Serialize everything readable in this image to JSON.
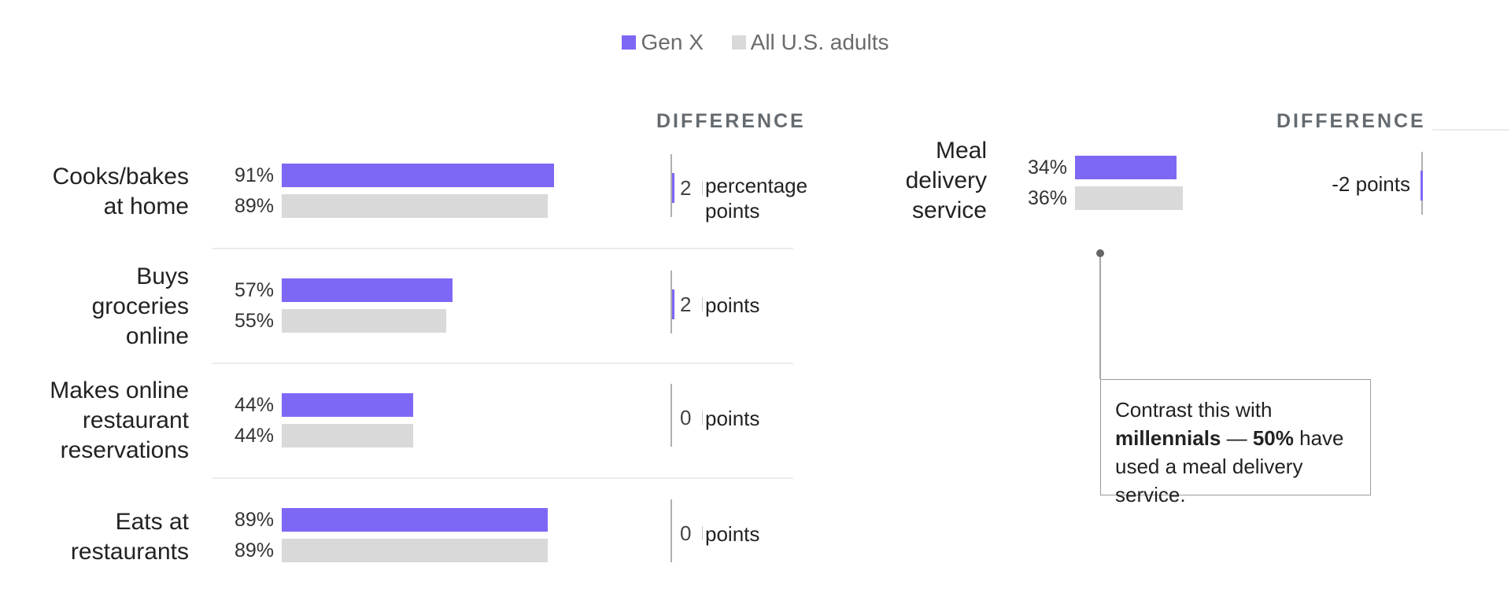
{
  "legend": [
    {
      "label": "Gen X",
      "color": "#7d68f5"
    },
    {
      "label": "All U.S. adults",
      "color": "#d9d9d9"
    }
  ],
  "diff_header": "DIFFERENCE",
  "chart_data": {
    "type": "bar",
    "orientation": "horizontal",
    "categories": [
      "Cooks/bakes at home",
      "Buys groceries online",
      "Makes online restaurant reservations",
      "Eats at restaurants",
      "Meal delivery service"
    ],
    "series": [
      {
        "name": "Gen X",
        "values": [
          91,
          57,
          44,
          89,
          34
        ],
        "color": "#7d68f5"
      },
      {
        "name": "All U.S. adults",
        "values": [
          89,
          55,
          44,
          89,
          36
        ],
        "color": "#d9d9d9"
      }
    ],
    "value_labels": {
      "Gen X": [
        "91%",
        "57%",
        "44%",
        "89%",
        "34%"
      ],
      "All U.S. adults": [
        "89%",
        "55%",
        "44%",
        "89%",
        "36%"
      ]
    },
    "difference": {
      "header": "DIFFERENCE",
      "values": [
        2,
        2,
        0,
        0,
        -2
      ],
      "labels": [
        {
          "number": "2",
          "unit": "percentage points"
        },
        {
          "number": "2",
          "unit": "points"
        },
        {
          "number": "0",
          "unit": "points"
        },
        {
          "number": "0",
          "unit": "points"
        },
        {
          "text": "-2 points"
        }
      ]
    },
    "annotation": {
      "text_before": "Contrast this with ",
      "bold_1": "millennials",
      "text_middle": " — ",
      "bold_2": "50%",
      "text_after": " have used a meal delivery service."
    },
    "xlim": [
      0,
      100
    ]
  }
}
